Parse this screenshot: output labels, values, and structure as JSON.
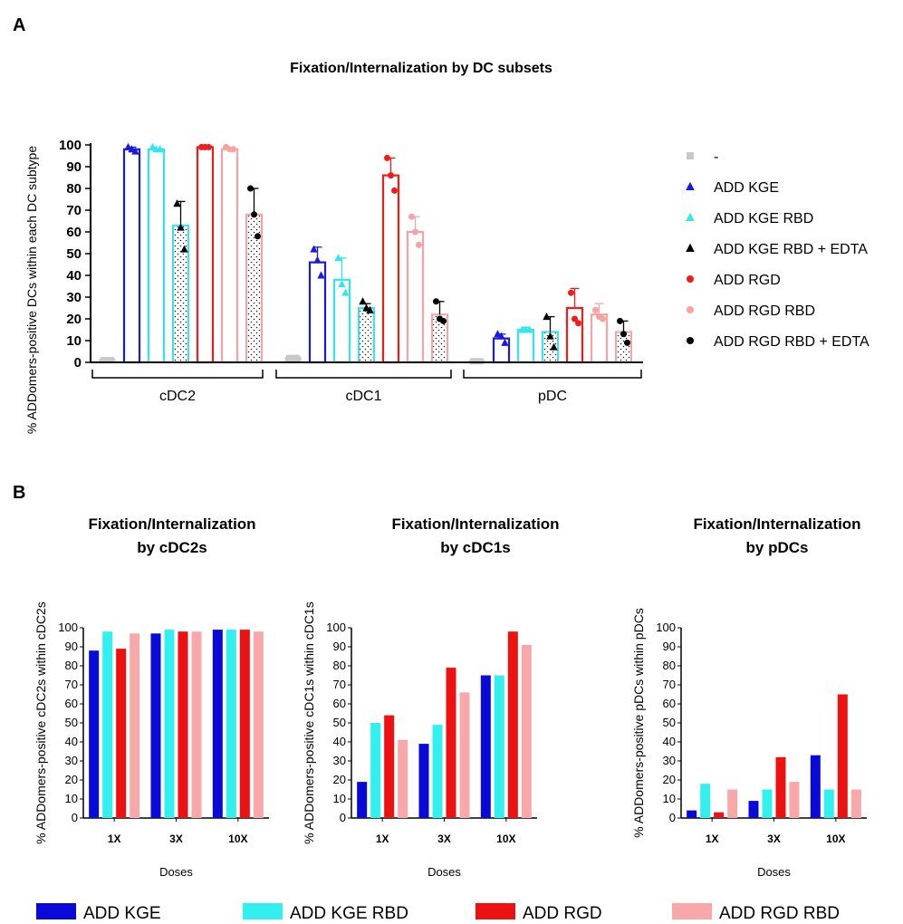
{
  "panel_a_label": "A",
  "panel_b_label": "B",
  "chart_data": [
    {
      "id": "A",
      "type": "bar",
      "title": "Fixation/Internalization by DC subsets",
      "ylabel": "% ADDomers-positive DCs within each DC subtype",
      "xlabel": "",
      "ylim": [
        0,
        100
      ],
      "yticks": [
        0,
        10,
        20,
        30,
        40,
        50,
        60,
        70,
        80,
        90,
        100
      ],
      "categories": [
        "cDC2",
        "cDC1",
        "pDC"
      ],
      "error_bars": true,
      "series": [
        {
          "name": "-",
          "color": "#c8c8c8",
          "marker": "square",
          "values": [
            1,
            2,
            0.5
          ],
          "errors": [
            0.5,
            1,
            0.3
          ],
          "points": [
            [
              1,
              1,
              1
            ],
            [
              2,
              2,
              2
            ],
            [
              0.5,
              0.5,
              0.5
            ]
          ]
        },
        {
          "name": "ADD KGE",
          "color": "#1a1adb",
          "marker": "triangle",
          "values": [
            98,
            46,
            11
          ],
          "errors": [
            1,
            7,
            2
          ],
          "points": [
            [
              99,
              98,
              97
            ],
            [
              52,
              47,
              40
            ],
            [
              13,
              12,
              9
            ]
          ]
        },
        {
          "name": "ADD KGE RBD",
          "color": "#33e5ef",
          "marker": "triangle",
          "values": [
            98,
            38,
            15
          ],
          "errors": [
            0.6,
            10,
            1
          ],
          "points": [
            [
              99,
              98,
              98
            ],
            [
              48,
              36,
              32
            ],
            [
              15,
              15,
              15
            ]
          ]
        },
        {
          "name": "ADD KGE RBD + EDTA",
          "color": "#000000",
          "bar_fill": "#33e5ef",
          "marker": "triangle",
          "values": [
            63,
            25,
            14
          ],
          "errors": [
            11,
            2,
            7
          ],
          "points": [
            [
              73,
              62,
              52
            ],
            [
              28,
              25,
              24
            ],
            [
              21,
              12,
              7
            ]
          ]
        },
        {
          "name": "ADD RGD",
          "color": "#ef1c1c",
          "marker": "circle",
          "values": [
            99,
            86,
            25
          ],
          "errors": [
            0.5,
            8,
            9
          ],
          "points": [
            [
              99,
              99,
              99
            ],
            [
              94,
              86,
              79
            ],
            [
              32,
              20,
              18
            ]
          ]
        },
        {
          "name": "ADD RGD RBD",
          "color": "#f7a3a3",
          "marker": "circle",
          "values": [
            98,
            60,
            22
          ],
          "errors": [
            0.5,
            7,
            5
          ],
          "points": [
            [
              99,
              98,
              98
            ],
            [
              67,
              60,
              54
            ],
            [
              24,
              21,
              20
            ]
          ]
        },
        {
          "name": "ADD RGD RBD + EDTA",
          "color": "#000000",
          "bar_fill": "#f7a3a3",
          "marker": "circle",
          "values": [
            68,
            22,
            14
          ],
          "errors": [
            12,
            6,
            5
          ],
          "points": [
            [
              80,
              68,
              58
            ],
            [
              28,
              20,
              19
            ],
            [
              19,
              13,
              9
            ]
          ]
        }
      ],
      "legend_position": "right"
    },
    {
      "id": "B1",
      "type": "bar",
      "title": "Fixation/Internalization by cDC2s",
      "ylabel": "% ADDomers-positive cDC2s within cDC2s",
      "xlabel": "Doses",
      "ylim": [
        0,
        100
      ],
      "yticks": [
        0,
        10,
        20,
        30,
        40,
        50,
        60,
        70,
        80,
        90,
        100
      ],
      "categories": [
        "1X",
        "3X",
        "10X"
      ],
      "series": [
        {
          "name": "ADD KGE",
          "color": "#0a0ad8",
          "values": [
            88,
            97,
            99
          ]
        },
        {
          "name": "ADD KGE RBD",
          "color": "#33f0f0",
          "values": [
            98,
            99,
            99
          ]
        },
        {
          "name": "ADD RGD",
          "color": "#ee1111",
          "values": [
            89,
            98,
            99
          ]
        },
        {
          "name": "ADD RGD RBD",
          "color": "#f8a8a8",
          "values": [
            97,
            98,
            98
          ]
        }
      ]
    },
    {
      "id": "B2",
      "type": "bar",
      "title": "Fixation/Internalization by cDC1s",
      "ylabel": "% ADDomers-positive cDC1s within cDC1s",
      "xlabel": "Doses",
      "ylim": [
        0,
        100
      ],
      "yticks": [
        0,
        10,
        20,
        30,
        40,
        50,
        60,
        70,
        80,
        90,
        100
      ],
      "categories": [
        "1X",
        "3X",
        "10X"
      ],
      "series": [
        {
          "name": "ADD KGE",
          "color": "#0a0ad8",
          "values": [
            19,
            39,
            75
          ]
        },
        {
          "name": "ADD KGE RBD",
          "color": "#33f0f0",
          "values": [
            50,
            49,
            75
          ]
        },
        {
          "name": "ADD RGD",
          "color": "#ee1111",
          "values": [
            54,
            79,
            98
          ]
        },
        {
          "name": "ADD RGD RBD",
          "color": "#f8a8a8",
          "values": [
            41,
            66,
            91
          ]
        }
      ]
    },
    {
      "id": "B3",
      "type": "bar",
      "title": "Fixation/Internalization by pDCs",
      "ylabel": "% ADDomers-positive pDCs within pDCs",
      "xlabel": "Doses",
      "ylim": [
        0,
        100
      ],
      "yticks": [
        0,
        10,
        20,
        30,
        40,
        50,
        60,
        70,
        80,
        90,
        100
      ],
      "categories": [
        "1X",
        "3X",
        "10X"
      ],
      "series": [
        {
          "name": "ADD KGE",
          "color": "#0a0ad8",
          "values": [
            4,
            9,
            33
          ]
        },
        {
          "name": "ADD KGE RBD",
          "color": "#33f0f0",
          "values": [
            18,
            15,
            15
          ]
        },
        {
          "name": "ADD RGD",
          "color": "#ee1111",
          "values": [
            3,
            32,
            65
          ]
        },
        {
          "name": "ADD RGD RBD",
          "color": "#f8a8a8",
          "values": [
            15,
            19,
            15
          ]
        }
      ]
    }
  ],
  "bottom_legend": [
    {
      "name": "ADD KGE",
      "color": "#0a0ad8"
    },
    {
      "name": "ADD KGE RBD",
      "color": "#33f0f0"
    },
    {
      "name": "ADD RGD",
      "color": "#ee1111"
    },
    {
      "name": "ADD RGD RBD",
      "color": "#f8a8a8"
    }
  ]
}
